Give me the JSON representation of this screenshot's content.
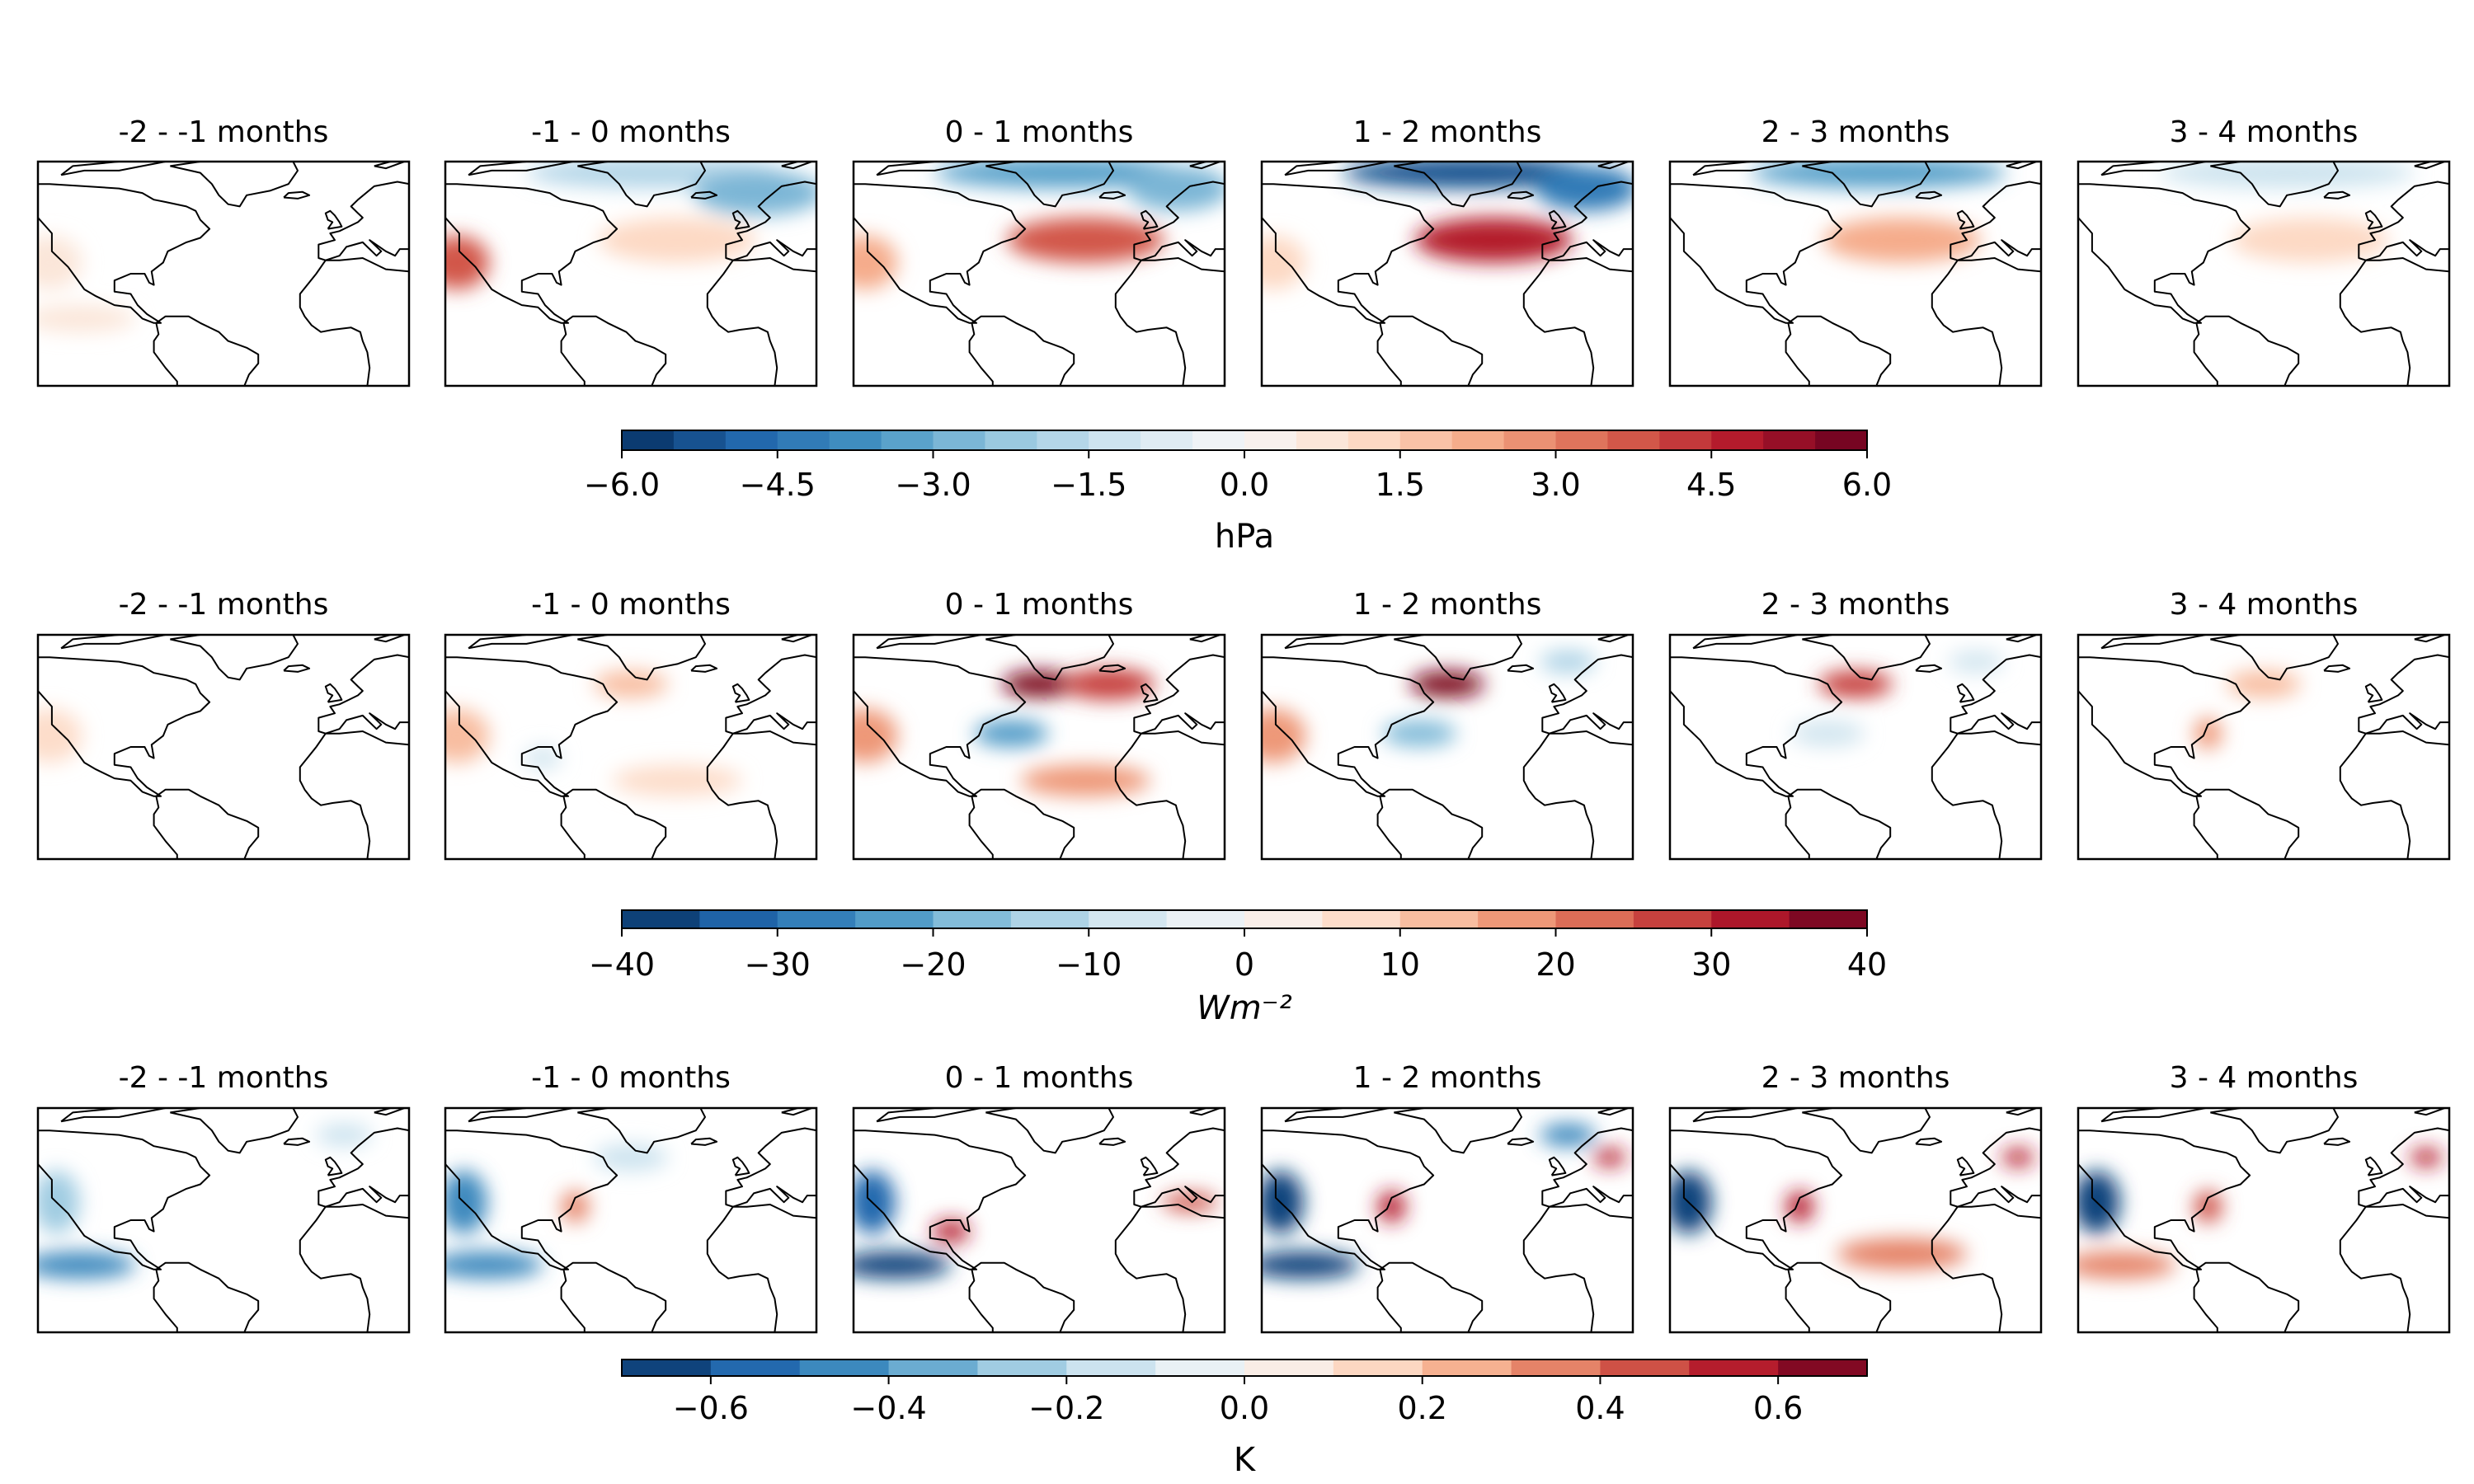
{
  "figure": {
    "panel_titles": [
      "-2 - -1 months",
      "-1 - 0 months",
      "0 - 1 months",
      "1 - 2 months",
      "2 - 3 months",
      "3 - 4 months"
    ]
  },
  "chart_data": [
    {
      "type": "heatmap",
      "variable_unit": "hPa",
      "colorbar": {
        "label": "hPa",
        "range": [
          -6.0,
          6.0
        ],
        "levels": 24,
        "tick_labels": [
          "−6.0",
          "−4.5",
          "−3.0",
          "−1.5",
          "0.0",
          "1.5",
          "3.0",
          "4.5",
          "6.0"
        ]
      },
      "panels": [
        {
          "title": "-2 - -1 months",
          "features": [
            {
              "region": "eastern Pacific",
              "value": 0.7
            },
            {
              "region": "tropical Pacific",
              "value": 0.5
            }
          ]
        },
        {
          "title": "-1 - 0 months",
          "features": [
            {
              "region": "Arctic / Greenland",
              "value": -2.0
            },
            {
              "region": "northeast Atlantic / Scandinavia",
              "value": -3.0
            },
            {
              "region": "eastern Pacific",
              "value": 3.5
            },
            {
              "region": "mid-latitude Atlantic",
              "value": 1.2
            }
          ]
        },
        {
          "title": "0 - 1 months",
          "features": [
            {
              "region": "Arctic / Greenland",
              "value": -3.5
            },
            {
              "region": "Scandinavia",
              "value": -3.0
            },
            {
              "region": "mid-latitude Atlantic",
              "value": 3.5
            },
            {
              "region": "eastern Pacific",
              "value": 2.0
            }
          ]
        },
        {
          "title": "1 - 2 months",
          "features": [
            {
              "region": "Arctic / Greenland",
              "value": -5.5
            },
            {
              "region": "Scandinavia",
              "value": -4.5
            },
            {
              "region": "mid-latitude Atlantic",
              "value": 4.5
            },
            {
              "region": "eastern Pacific",
              "value": 1.0
            }
          ]
        },
        {
          "title": "2 - 3 months",
          "features": [
            {
              "region": "Arctic / Greenland",
              "value": -3.5
            },
            {
              "region": "mid-latitude Atlantic",
              "value": 2.0
            }
          ]
        },
        {
          "title": "3 - 4 months",
          "features": [
            {
              "region": "Arctic / Greenland",
              "value": -1.5
            },
            {
              "region": "mid-latitude Atlantic",
              "value": 1.0
            }
          ]
        }
      ]
    },
    {
      "type": "heatmap",
      "variable_unit": "Wm^-2",
      "colorbar": {
        "label": "Wm⁻²",
        "range": [
          -40,
          40
        ],
        "levels": 16,
        "tick_labels": [
          "−40",
          "−30",
          "−20",
          "−10",
          "0",
          "10",
          "20",
          "30",
          "40"
        ]
      },
      "panels": [
        {
          "title": "-2 - -1 months",
          "features": [
            {
              "region": "eastern Pacific",
              "value": 8
            }
          ]
        },
        {
          "title": "-1 - 0 months",
          "features": [
            {
              "region": "Labrador Sea",
              "value": 12
            },
            {
              "region": "eastern Pacific",
              "value": 10
            },
            {
              "region": "tropical Atlantic",
              "value": 8
            },
            {
              "region": "Gulf of Mexico",
              "value": -8
            }
          ]
        },
        {
          "title": "0 - 1 months",
          "features": [
            {
              "region": "Labrador Sea",
              "value": 38
            },
            {
              "region": "northeast Atlantic",
              "value": 25
            },
            {
              "region": "Gulf Stream",
              "value": -25
            },
            {
              "region": "eastern Pacific",
              "value": 15
            },
            {
              "region": "tropical Atlantic",
              "value": 15
            }
          ]
        },
        {
          "title": "1 - 2 months",
          "features": [
            {
              "region": "Labrador Sea",
              "value": 35
            },
            {
              "region": "Gulf Stream",
              "value": -20
            },
            {
              "region": "Nordic Seas",
              "value": -12
            },
            {
              "region": "eastern Pacific",
              "value": 15
            }
          ]
        },
        {
          "title": "2 - 3 months",
          "features": [
            {
              "region": "Labrador Sea",
              "value": 28
            },
            {
              "region": "Nordic Seas",
              "value": -10
            },
            {
              "region": "Gulf Stream",
              "value": -6
            }
          ]
        },
        {
          "title": "3 - 4 months",
          "features": [
            {
              "region": "Labrador Sea",
              "value": 10
            },
            {
              "region": "US east coast",
              "value": 15
            }
          ]
        }
      ]
    },
    {
      "type": "heatmap",
      "variable_unit": "K",
      "colorbar": {
        "label": "K",
        "range": [
          -0.7,
          0.7
        ],
        "levels": 14,
        "tick_labels": [
          "−0.6",
          "−0.4",
          "−0.2",
          "0.0",
          "0.2",
          "0.4",
          "0.6"
        ]
      },
      "panels": [
        {
          "title": "-2 - -1 months",
          "features": [
            {
              "region": "eastern Pacific coast",
              "value": -0.3
            },
            {
              "region": "tropical Pacific",
              "value": -0.4
            },
            {
              "region": "Nordic Seas",
              "value": -0.2
            }
          ]
        },
        {
          "title": "-1 - 0 months",
          "features": [
            {
              "region": "eastern Pacific coast",
              "value": -0.4
            },
            {
              "region": "tropical Pacific",
              "value": -0.4
            },
            {
              "region": "US east coast",
              "value": 0.3
            },
            {
              "region": "Labrador Sea",
              "value": -0.2
            }
          ]
        },
        {
          "title": "0 - 1 months",
          "features": [
            {
              "region": "eastern Pacific coast",
              "value": -0.5
            },
            {
              "region": "tropical Pacific",
              "value": -0.6
            },
            {
              "region": "Gulf of Mexico",
              "value": 0.5
            },
            {
              "region": "Mediterranean",
              "value": 0.4
            }
          ]
        },
        {
          "title": "1 - 2 months",
          "features": [
            {
              "region": "eastern Pacific coast",
              "value": -0.6
            },
            {
              "region": "tropical Pacific",
              "value": -0.6
            },
            {
              "region": "US east coast",
              "value": 0.5
            },
            {
              "region": "Nordic Seas",
              "value": -0.4
            },
            {
              "region": "Baltic",
              "value": 0.6
            }
          ]
        },
        {
          "title": "2 - 3 months",
          "features": [
            {
              "region": "eastern Pacific coast",
              "value": -0.6
            },
            {
              "region": "tropical Atlantic",
              "value": 0.3
            },
            {
              "region": "US east coast",
              "value": 0.5
            },
            {
              "region": "Baltic",
              "value": 0.6
            }
          ]
        },
        {
          "title": "3 - 4 months",
          "features": [
            {
              "region": "eastern Pacific coast",
              "value": -0.6
            },
            {
              "region": "tropical Pacific",
              "value": 0.3
            },
            {
              "region": "US east coast",
              "value": 0.4
            },
            {
              "region": "Baltic",
              "value": 0.6
            }
          ]
        }
      ]
    }
  ]
}
